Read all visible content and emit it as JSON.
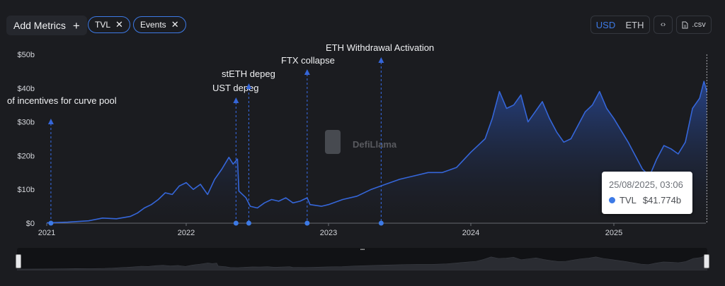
{
  "toolbar": {
    "add_metrics_label": "Add Metrics",
    "add_metrics_icon": "plus-icon",
    "chips": [
      {
        "label": "TVL",
        "icon": "close-icon"
      },
      {
        "label": "Events",
        "icon": "close-icon"
      }
    ],
    "currency": {
      "options": [
        "USD",
        "ETH"
      ],
      "selected": "USD"
    },
    "embed_icon": "code-icon",
    "csv_label": ".csv",
    "csv_icon": "file-icon"
  },
  "watermark": {
    "label": "DefiLlama"
  },
  "tooltip": {
    "date": "25/08/2025, 03:06",
    "series": "TVL",
    "value": "$41.774b"
  },
  "colors": {
    "accent": "#3d7ae6",
    "background": "#1b1c20",
    "line": "#3566d9"
  },
  "chart_data": {
    "type": "area",
    "y_ticks": [
      "$0",
      "$10b",
      "$20b",
      "$30b",
      "$40b",
      "$50b"
    ],
    "ylim": [
      0,
      50
    ],
    "x_ticks": [
      "2021",
      "2022",
      "2023",
      "2024",
      "2025"
    ],
    "xlim": [
      2021.0,
      2025.65
    ],
    "series": [
      {
        "name": "TVL",
        "unit": "$b",
        "points": [
          [
            2021.0,
            0.1
          ],
          [
            2021.15,
            0.3
          ],
          [
            2021.3,
            0.7
          ],
          [
            2021.4,
            1.5
          ],
          [
            2021.5,
            1.3
          ],
          [
            2021.6,
            2.0
          ],
          [
            2021.65,
            3.0
          ],
          [
            2021.7,
            4.5
          ],
          [
            2021.75,
            5.5
          ],
          [
            2021.8,
            7.0
          ],
          [
            2021.85,
            9.0
          ],
          [
            2021.9,
            8.5
          ],
          [
            2021.95,
            11.0
          ],
          [
            2022.0,
            12.0
          ],
          [
            2022.05,
            10.0
          ],
          [
            2022.1,
            11.5
          ],
          [
            2022.15,
            8.5
          ],
          [
            2022.2,
            13.0
          ],
          [
            2022.25,
            16.0
          ],
          [
            2022.3,
            19.5
          ],
          [
            2022.33,
            17.5
          ],
          [
            2022.36,
            19.0
          ],
          [
            2022.37,
            9.5
          ],
          [
            2022.42,
            7.5
          ],
          [
            2022.45,
            5.0
          ],
          [
            2022.5,
            4.5
          ],
          [
            2022.55,
            6.0
          ],
          [
            2022.6,
            7.0
          ],
          [
            2022.65,
            6.5
          ],
          [
            2022.7,
            7.5
          ],
          [
            2022.75,
            6.0
          ],
          [
            2022.8,
            6.5
          ],
          [
            2022.85,
            7.5
          ],
          [
            2022.87,
            5.5
          ],
          [
            2022.95,
            5.0
          ],
          [
            2023.0,
            5.5
          ],
          [
            2023.1,
            7.0
          ],
          [
            2023.2,
            8.0
          ],
          [
            2023.3,
            10.0
          ],
          [
            2023.4,
            11.5
          ],
          [
            2023.5,
            13.0
          ],
          [
            2023.6,
            14.0
          ],
          [
            2023.7,
            15.0
          ],
          [
            2023.8,
            15.0
          ],
          [
            2023.9,
            16.5
          ],
          [
            2024.0,
            21.0
          ],
          [
            2024.05,
            23.0
          ],
          [
            2024.1,
            25.0
          ],
          [
            2024.15,
            31.0
          ],
          [
            2024.2,
            39.0
          ],
          [
            2024.25,
            34.0
          ],
          [
            2024.3,
            35.0
          ],
          [
            2024.35,
            38.0
          ],
          [
            2024.4,
            30.0
          ],
          [
            2024.45,
            33.0
          ],
          [
            2024.5,
            36.0
          ],
          [
            2024.55,
            31.0
          ],
          [
            2024.6,
            27.0
          ],
          [
            2024.65,
            24.0
          ],
          [
            2024.7,
            25.0
          ],
          [
            2024.75,
            29.0
          ],
          [
            2024.8,
            33.0
          ],
          [
            2024.85,
            35.0
          ],
          [
            2024.9,
            39.0
          ],
          [
            2024.95,
            34.0
          ],
          [
            2025.0,
            31.0
          ],
          [
            2025.1,
            24.0
          ],
          [
            2025.15,
            20.0
          ],
          [
            2025.2,
            16.0
          ],
          [
            2025.25,
            14.0
          ],
          [
            2025.3,
            19.0
          ],
          [
            2025.35,
            23.0
          ],
          [
            2025.4,
            22.0
          ],
          [
            2025.45,
            20.5
          ],
          [
            2025.5,
            24.0
          ],
          [
            2025.55,
            34.0
          ],
          [
            2025.6,
            37.0
          ],
          [
            2025.63,
            42.0
          ],
          [
            2025.65,
            39.0
          ]
        ]
      }
    ],
    "events": [
      {
        "date": 2021.03,
        "label": "of incentives for curve pool"
      },
      {
        "date": 2022.35,
        "label": "UST depeg"
      },
      {
        "date": 2022.44,
        "label": "stETH depeg"
      },
      {
        "date": 2022.85,
        "label": "FTX collapse"
      },
      {
        "date": 2023.37,
        "label": "ETH Withdrawal Activation"
      }
    ],
    "crosshair_date": 2025.65
  }
}
